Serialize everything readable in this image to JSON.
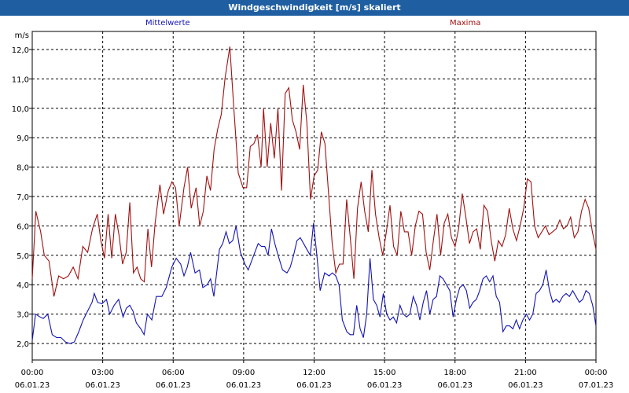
{
  "title": "Windgeschwindigkeit [m/s] skaliert",
  "chart_data": {
    "type": "line",
    "title": "Windgeschwindigkeit [m/s] skaliert",
    "ylabel": "m/s",
    "xlabel": "",
    "ylim": [
      1.7,
      12.4
    ],
    "yticks": [
      "2,0",
      "3,0",
      "4,0",
      "5,0",
      "6,0",
      "7,0",
      "8,0",
      "9,0",
      "10,0",
      "11,0",
      "12,0"
    ],
    "ytick_values": [
      2,
      3,
      4,
      5,
      6,
      7,
      8,
      9,
      10,
      11,
      12
    ],
    "xlim": [
      0,
      24
    ],
    "xtick_values": [
      0,
      3,
      6,
      9,
      12,
      15,
      18,
      21,
      24
    ],
    "xticks": [
      {
        "time": "00:00",
        "date": "06.01.23"
      },
      {
        "time": "03:00",
        "date": "06.01.23"
      },
      {
        "time": "06:00",
        "date": "06.01.23"
      },
      {
        "time": "09:00",
        "date": "06.01.23"
      },
      {
        "time": "12:00",
        "date": "06.01.23"
      },
      {
        "time": "15:00",
        "date": "06.01.23"
      },
      {
        "time": "18:00",
        "date": "06.01.23"
      },
      {
        "time": "21:00",
        "date": "06.01.23"
      },
      {
        "time": "00:00",
        "date": "07.01.23"
      }
    ],
    "grid": true,
    "series": [
      {
        "name": "Mittelwerte",
        "color": "#1414b4",
        "points": [
          [
            0.0,
            2.1
          ],
          [
            0.15,
            3.0
          ],
          [
            0.35,
            2.9
          ],
          [
            0.5,
            2.85
          ],
          [
            0.7,
            3.0
          ],
          [
            0.9,
            2.3
          ],
          [
            1.1,
            2.2
          ],
          [
            1.3,
            2.2
          ],
          [
            1.5,
            2.05
          ],
          [
            1.7,
            2.0
          ],
          [
            1.9,
            2.05
          ],
          [
            2.1,
            2.4
          ],
          [
            2.3,
            2.8
          ],
          [
            2.5,
            3.1
          ],
          [
            2.7,
            3.4
          ],
          [
            2.8,
            3.7
          ],
          [
            2.95,
            3.4
          ],
          [
            3.15,
            3.35
          ],
          [
            3.35,
            3.5
          ],
          [
            3.5,
            3.0
          ],
          [
            3.7,
            3.3
          ],
          [
            3.9,
            3.5
          ],
          [
            4.1,
            2.9
          ],
          [
            4.25,
            3.2
          ],
          [
            4.4,
            3.3
          ],
          [
            4.55,
            3.1
          ],
          [
            4.7,
            2.7
          ],
          [
            4.9,
            2.5
          ],
          [
            5.05,
            2.3
          ],
          [
            5.2,
            3.0
          ],
          [
            5.4,
            2.8
          ],
          [
            5.6,
            3.6
          ],
          [
            5.85,
            3.6
          ],
          [
            6.05,
            3.9
          ],
          [
            6.3,
            4.6
          ],
          [
            6.5,
            4.9
          ],
          [
            6.7,
            4.7
          ],
          [
            6.85,
            4.3
          ],
          [
            7.0,
            4.6
          ],
          [
            7.15,
            5.1
          ],
          [
            7.35,
            4.4
          ],
          [
            7.55,
            4.5
          ],
          [
            7.7,
            3.9
          ],
          [
            7.9,
            4.0
          ],
          [
            8.05,
            4.2
          ],
          [
            8.2,
            3.6
          ],
          [
            8.45,
            5.2
          ],
          [
            8.6,
            5.4
          ],
          [
            8.75,
            5.8
          ],
          [
            8.9,
            5.4
          ],
          [
            9.05,
            5.5
          ],
          [
            9.2,
            6.0
          ],
          [
            9.4,
            5.1
          ],
          [
            9.6,
            4.7
          ],
          [
            9.75,
            4.5
          ],
          [
            9.9,
            4.8
          ],
          [
            10.05,
            5.1
          ],
          [
            10.2,
            5.4
          ],
          [
            10.35,
            5.3
          ],
          [
            10.5,
            5.3
          ],
          [
            10.65,
            5.0
          ],
          [
            10.8,
            5.9
          ],
          [
            10.95,
            5.4
          ],
          [
            11.1,
            5.0
          ],
          [
            11.3,
            4.5
          ],
          [
            11.5,
            4.4
          ],
          [
            11.65,
            4.6
          ],
          [
            11.8,
            5.0
          ],
          [
            11.95,
            5.5
          ],
          [
            12.1,
            5.6
          ],
          [
            12.25,
            5.4
          ],
          [
            12.4,
            5.2
          ],
          [
            12.55,
            5.0
          ],
          [
            12.7,
            6.1
          ],
          [
            12.85,
            5.0
          ],
          [
            13.0,
            3.8
          ],
          [
            13.2,
            4.4
          ],
          [
            13.4,
            4.3
          ],
          [
            13.55,
            4.4
          ],
          [
            13.7,
            4.3
          ],
          [
            13.85,
            4.0
          ],
          [
            14.0,
            2.8
          ],
          [
            14.2,
            2.4
          ],
          [
            14.35,
            2.3
          ],
          [
            14.5,
            2.3
          ],
          [
            14.65,
            3.3
          ],
          [
            14.8,
            2.5
          ],
          [
            14.95,
            2.2
          ],
          [
            15.1,
            3.0
          ],
          [
            15.25,
            4.9
          ],
          [
            15.4,
            3.5
          ],
          [
            15.55,
            3.3
          ],
          [
            15.7,
            2.9
          ],
          [
            15.85,
            3.7
          ],
          [
            16.0,
            3.0
          ],
          [
            16.15,
            2.8
          ],
          [
            16.3,
            2.9
          ],
          [
            16.45,
            2.7
          ],
          [
            16.6,
            3.3
          ],
          [
            16.75,
            3.0
          ],
          [
            16.9,
            2.9
          ],
          [
            17.05,
            3.0
          ],
          [
            17.2,
            3.6
          ],
          [
            17.35,
            3.3
          ],
          [
            17.5,
            2.8
          ],
          [
            17.65,
            3.4
          ],
          [
            17.8,
            3.8
          ],
          [
            17.95,
            3.0
          ],
          [
            18.1,
            3.5
          ],
          [
            18.25,
            3.6
          ],
          [
            18.4,
            4.3
          ],
          [
            18.55,
            4.2
          ],
          [
            18.7,
            4.0
          ],
          [
            18.85,
            3.8
          ],
          [
            19.0,
            2.9
          ],
          [
            19.15,
            3.5
          ],
          [
            19.3,
            3.9
          ],
          [
            19.45,
            4.0
          ],
          [
            19.6,
            3.8
          ],
          [
            19.75,
            3.2
          ],
          [
            19.9,
            3.4
          ],
          [
            20.05,
            3.5
          ],
          [
            20.2,
            3.8
          ],
          [
            20.35,
            4.2
          ],
          [
            20.5,
            4.3
          ],
          [
            20.65,
            4.1
          ],
          [
            20.8,
            4.3
          ],
          [
            20.95,
            3.6
          ],
          [
            21.1,
            3.4
          ],
          [
            21.25,
            2.4
          ],
          [
            21.4,
            2.6
          ],
          [
            21.55,
            2.6
          ],
          [
            21.7,
            2.5
          ],
          [
            21.85,
            2.8
          ],
          [
            22.0,
            2.5
          ],
          [
            22.15,
            2.8
          ],
          [
            22.3,
            3.0
          ],
          [
            22.45,
            2.8
          ],
          [
            22.6,
            3.0
          ],
          [
            22.75,
            3.7
          ],
          [
            22.9,
            3.8
          ],
          [
            23.05,
            4.0
          ],
          [
            23.2,
            4.5
          ],
          [
            23.35,
            3.8
          ],
          [
            23.5,
            3.4
          ],
          [
            23.65,
            3.5
          ],
          [
            23.8,
            3.4
          ],
          [
            23.95,
            3.6
          ],
          [
            24.1,
            3.7
          ],
          [
            24.25,
            3.6
          ],
          [
            24.4,
            3.8
          ],
          [
            24.55,
            3.6
          ],
          [
            24.7,
            3.4
          ],
          [
            24.85,
            3.5
          ],
          [
            25.0,
            3.8
          ],
          [
            25.15,
            3.7
          ],
          [
            25.3,
            3.3
          ],
          [
            25.45,
            2.6
          ]
        ]
      },
      {
        "name": "Maxima",
        "color": "#a01010",
        "points": [
          [
            0.0,
            4.2
          ],
          [
            0.15,
            6.5
          ],
          [
            0.35,
            5.8
          ],
          [
            0.5,
            5.0
          ],
          [
            0.7,
            4.8
          ],
          [
            0.9,
            3.6
          ],
          [
            1.1,
            4.3
          ],
          [
            1.3,
            4.2
          ],
          [
            1.5,
            4.3
          ],
          [
            1.7,
            4.6
          ],
          [
            1.9,
            4.2
          ],
          [
            2.1,
            5.3
          ],
          [
            2.3,
            5.1
          ],
          [
            2.5,
            5.9
          ],
          [
            2.7,
            6.4
          ],
          [
            2.85,
            5.5
          ],
          [
            3.0,
            4.9
          ],
          [
            3.15,
            6.4
          ],
          [
            3.3,
            4.9
          ],
          [
            3.45,
            6.4
          ],
          [
            3.6,
            5.7
          ],
          [
            3.75,
            4.7
          ],
          [
            3.9,
            5.1
          ],
          [
            4.05,
            6.8
          ],
          [
            4.2,
            4.4
          ],
          [
            4.35,
            4.6
          ],
          [
            4.5,
            4.2
          ],
          [
            4.65,
            4.1
          ],
          [
            4.8,
            5.9
          ],
          [
            4.95,
            4.6
          ],
          [
            5.1,
            6.1
          ],
          [
            5.3,
            7.4
          ],
          [
            5.45,
            6.4
          ],
          [
            5.65,
            7.2
          ],
          [
            5.8,
            7.5
          ],
          [
            5.95,
            7.3
          ],
          [
            6.1,
            6.0
          ],
          [
            6.3,
            7.3
          ],
          [
            6.45,
            8.0
          ],
          [
            6.6,
            6.6
          ],
          [
            6.8,
            7.3
          ],
          [
            6.95,
            6.0
          ],
          [
            7.1,
            6.5
          ],
          [
            7.25,
            7.7
          ],
          [
            7.4,
            7.2
          ],
          [
            7.55,
            8.6
          ],
          [
            7.7,
            9.3
          ],
          [
            7.85,
            9.8
          ],
          [
            8.0,
            11.0
          ],
          [
            8.2,
            12.1
          ],
          [
            8.35,
            10.2
          ],
          [
            8.55,
            7.8
          ],
          [
            8.75,
            7.3
          ],
          [
            8.9,
            7.3
          ],
          [
            9.05,
            8.7
          ],
          [
            9.2,
            8.8
          ],
          [
            9.35,
            9.1
          ],
          [
            9.5,
            8.0
          ],
          [
            9.6,
            10.0
          ],
          [
            9.75,
            8.0
          ],
          [
            9.9,
            9.5
          ],
          [
            10.05,
            8.3
          ],
          [
            10.2,
            10.0
          ],
          [
            10.35,
            7.2
          ],
          [
            10.5,
            10.5
          ],
          [
            10.65,
            10.7
          ],
          [
            10.8,
            9.6
          ],
          [
            10.95,
            9.2
          ],
          [
            11.1,
            8.6
          ],
          [
            11.25,
            10.8
          ],
          [
            11.4,
            9.5
          ],
          [
            11.55,
            6.9
          ],
          [
            11.7,
            7.7
          ],
          [
            11.85,
            7.9
          ],
          [
            12.0,
            9.2
          ],
          [
            12.15,
            8.8
          ],
          [
            12.3,
            7.1
          ],
          [
            12.45,
            5.4
          ],
          [
            12.6,
            4.4
          ],
          [
            12.75,
            4.7
          ],
          [
            12.9,
            4.7
          ],
          [
            13.05,
            6.9
          ],
          [
            13.2,
            5.6
          ],
          [
            13.35,
            4.2
          ],
          [
            13.5,
            6.6
          ],
          [
            13.65,
            7.5
          ],
          [
            13.8,
            6.5
          ],
          [
            13.95,
            5.8
          ],
          [
            14.1,
            7.9
          ],
          [
            14.25,
            6.4
          ],
          [
            14.4,
            5.6
          ],
          [
            14.55,
            5.0
          ],
          [
            14.7,
            5.8
          ],
          [
            14.85,
            6.7
          ],
          [
            15.0,
            5.3
          ],
          [
            15.15,
            5.0
          ],
          [
            15.3,
            6.5
          ],
          [
            15.45,
            5.8
          ],
          [
            15.6,
            5.8
          ],
          [
            15.75,
            5.0
          ],
          [
            15.9,
            6.0
          ],
          [
            16.05,
            6.5
          ],
          [
            16.2,
            6.4
          ],
          [
            16.35,
            5.1
          ],
          [
            16.5,
            4.5
          ],
          [
            16.65,
            5.5
          ],
          [
            16.8,
            6.4
          ],
          [
            16.95,
            5.0
          ],
          [
            17.1,
            6.1
          ],
          [
            17.25,
            6.4
          ],
          [
            17.4,
            5.6
          ],
          [
            17.55,
            5.3
          ],
          [
            17.7,
            5.9
          ],
          [
            17.85,
            7.1
          ],
          [
            18.0,
            6.3
          ],
          [
            18.15,
            5.4
          ],
          [
            18.3,
            5.8
          ],
          [
            18.45,
            5.9
          ],
          [
            18.6,
            5.2
          ],
          [
            18.75,
            6.7
          ],
          [
            18.9,
            6.5
          ],
          [
            19.05,
            5.5
          ],
          [
            19.2,
            4.8
          ],
          [
            19.35,
            5.5
          ],
          [
            19.5,
            5.3
          ],
          [
            19.65,
            5.7
          ],
          [
            19.8,
            6.6
          ],
          [
            19.95,
            5.9
          ],
          [
            20.1,
            5.5
          ],
          [
            20.25,
            6.0
          ],
          [
            20.4,
            6.6
          ],
          [
            20.55,
            7.6
          ],
          [
            20.7,
            7.5
          ],
          [
            20.85,
            6.0
          ],
          [
            21.0,
            5.6
          ],
          [
            21.15,
            5.8
          ],
          [
            21.3,
            6.0
          ],
          [
            21.45,
            5.7
          ],
          [
            21.6,
            5.8
          ],
          [
            21.75,
            5.9
          ],
          [
            21.9,
            6.2
          ],
          [
            22.05,
            5.9
          ],
          [
            22.2,
            6.0
          ],
          [
            22.35,
            6.3
          ],
          [
            22.5,
            5.6
          ],
          [
            22.65,
            5.8
          ],
          [
            22.8,
            6.5
          ],
          [
            22.95,
            6.9
          ],
          [
            23.1,
            6.6
          ],
          [
            23.25,
            5.8
          ],
          [
            23.4,
            5.2
          ]
        ]
      }
    ]
  }
}
